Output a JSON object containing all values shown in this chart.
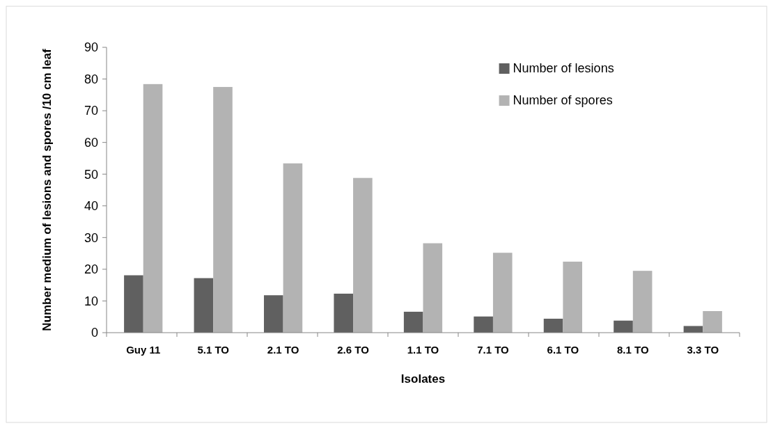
{
  "chart_data": {
    "type": "bar",
    "xlabel": "Isolates",
    "ylabel": "Number medium of lesions and spores /10 cm leaf",
    "categories": [
      "Guy 11",
      "5.1 TO",
      "2.1 TO",
      "2.6 TO",
      "1.1 TO",
      "7.1 TO",
      "6.1 TO",
      "8.1 TO",
      "3.3 TO"
    ],
    "series": [
      {
        "name": "Number of lesions",
        "color": "#606060",
        "values": [
          18.1,
          17.2,
          11.8,
          12.3,
          6.6,
          5.1,
          4.4,
          3.8,
          2.1
        ]
      },
      {
        "name": "Number of spores",
        "color": "#b3b3b3",
        "values": [
          78.4,
          77.5,
          53.4,
          48.8,
          28.2,
          25.2,
          22.4,
          19.5,
          6.8
        ]
      }
    ],
    "ylim": [
      0,
      90
    ],
    "yticks": [
      0,
      10,
      20,
      30,
      40,
      50,
      60,
      70,
      80,
      90
    ],
    "grid": false,
    "legend": "top right"
  }
}
